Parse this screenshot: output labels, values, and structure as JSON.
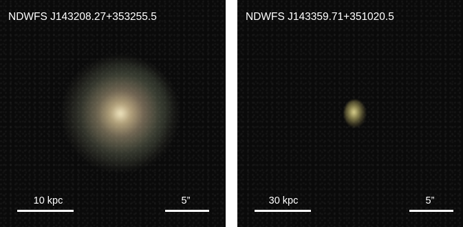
{
  "panels": [
    {
      "title": "NDWFS J143208.27+353255.5",
      "scale_physical": "10 kpc",
      "scale_angular": "5”"
    },
    {
      "title": "NDWFS J143359.71+351020.5",
      "scale_physical": "30 kpc",
      "scale_angular": "5”"
    }
  ]
}
